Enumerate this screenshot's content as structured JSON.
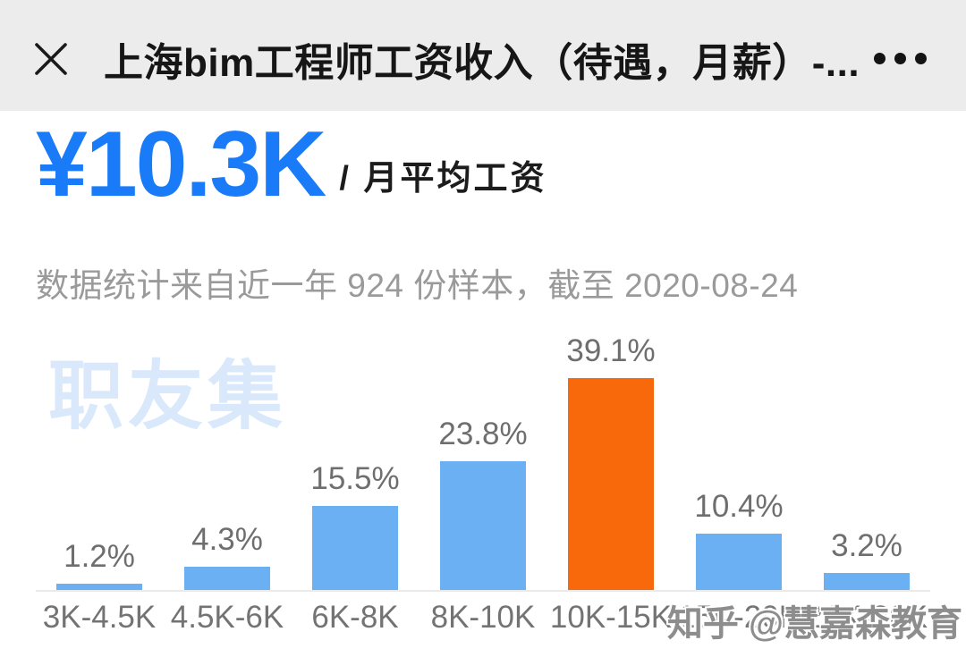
{
  "header": {
    "title": "上海bim工程师工资收入（待遇，月薪）-..."
  },
  "summary": {
    "average_salary": "¥10.3K",
    "salary_unit_label": "/ 月平均工资",
    "caption": "数据统计来自近一年 924 份样本，截至 2020-08-24"
  },
  "watermarks": {
    "site_watermark": "职友集",
    "credit_watermark": "知乎 @慧嘉森教育"
  },
  "chart_data": {
    "type": "bar",
    "categories": [
      "3K-4.5K",
      "4.5K-6K",
      "6K-8K",
      "8K-10K",
      "10K-15K",
      "15K-20K",
      "20K-30K"
    ],
    "values": [
      1.2,
      4.3,
      15.5,
      23.8,
      39.1,
      10.4,
      3.2
    ],
    "value_unit": "%",
    "highlight_index": 4,
    "bar_color": "#6cb0f4",
    "highlight_color": "#f8690b",
    "ylim": [
      0,
      40
    ],
    "grid": false,
    "legend": false,
    "title": "",
    "xlabel": "",
    "ylabel": ""
  },
  "colors": {
    "accent_blue": "#1a7bf9",
    "header_bg": "#ececec",
    "caption_gray": "#9a9a9a",
    "label_gray": "#6e6e6e",
    "baseline_gray": "#eaeaea",
    "site_watermark_blue": "#d9e9fb"
  }
}
